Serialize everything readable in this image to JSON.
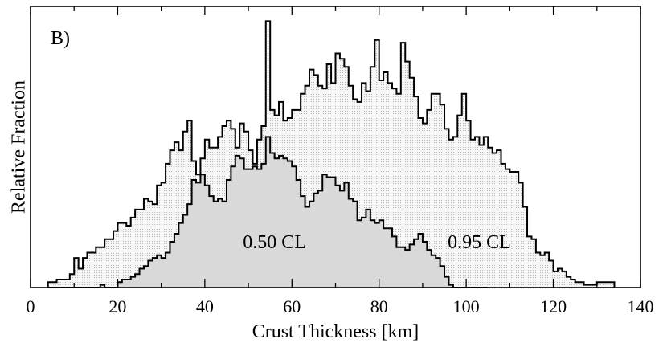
{
  "chart_data": {
    "type": "histogram",
    "panel_label": "B)",
    "xlabel": "Crust Thickness [km]",
    "ylabel": "Relative Fraction",
    "xlim": [
      0,
      140
    ],
    "ylim": [
      0,
      1
    ],
    "xticks": [
      0,
      20,
      40,
      60,
      80,
      100,
      120,
      140
    ],
    "bin_start": 4,
    "bin_width": 1,
    "series": [
      {
        "name": "0.95 CL",
        "label": "0.95 CL",
        "label_position": [
          103,
          0.17
        ],
        "values": [
          0.02,
          0.02,
          0.03,
          0.03,
          0.03,
          0.05,
          0.11,
          0.07,
          0.11,
          0.13,
          0.13,
          0.15,
          0.15,
          0.18,
          0.18,
          0.21,
          0.24,
          0.24,
          0.23,
          0.26,
          0.29,
          0.29,
          0.33,
          0.32,
          0.31,
          0.38,
          0.39,
          0.46,
          0.51,
          0.54,
          0.51,
          0.58,
          0.62,
          0.47,
          0.42,
          0.48,
          0.55,
          0.52,
          0.52,
          0.56,
          0.6,
          0.62,
          0.59,
          0.52,
          0.61,
          0.58,
          0.51,
          0.46,
          0.55,
          0.6,
          0.99,
          0.66,
          0.64,
          0.69,
          0.62,
          0.63,
          0.66,
          0.66,
          0.72,
          0.75,
          0.81,
          0.79,
          0.75,
          0.74,
          0.83,
          0.76,
          0.87,
          0.85,
          0.82,
          0.75,
          0.7,
          0.69,
          0.76,
          0.73,
          0.82,
          0.92,
          0.77,
          0.8,
          0.76,
          0.74,
          0.72,
          0.91,
          0.84,
          0.78,
          0.71,
          0.63,
          0.61,
          0.66,
          0.72,
          0.72,
          0.68,
          0.59,
          0.55,
          0.56,
          0.64,
          0.72,
          0.62,
          0.55,
          0.56,
          0.53,
          0.56,
          0.52,
          0.5,
          0.51,
          0.46,
          0.44,
          0.43,
          0.43,
          0.39,
          0.3,
          0.19,
          0.18,
          0.13,
          0.12,
          0.13,
          0.1,
          0.06,
          0.07,
          0.06,
          0.04,
          0.03,
          0.02,
          0.02,
          0.01,
          0.01,
          0.01,
          0.02,
          0.02,
          0.02,
          0.02
        ]
      },
      {
        "name": "0.50 CL",
        "label": "0.50 CL",
        "label_position": [
          56,
          0.17
        ],
        "values": [
          0,
          0,
          0,
          0,
          0,
          0,
          0,
          0,
          0,
          0,
          0,
          0,
          0.01,
          0,
          0,
          0,
          0.02,
          0.03,
          0.03,
          0.04,
          0.05,
          0.07,
          0.08,
          0.1,
          0.11,
          0.12,
          0.11,
          0.13,
          0.17,
          0.2,
          0.24,
          0.27,
          0.31,
          0.4,
          0.39,
          0.42,
          0.38,
          0.34,
          0.32,
          0.33,
          0.32,
          0.4,
          0.45,
          0.49,
          0.48,
          0.44,
          0.44,
          0.45,
          0.44,
          0.46,
          0.56,
          0.5,
          0.48,
          0.49,
          0.48,
          0.47,
          0.45,
          0.4,
          0.34,
          0.3,
          0.32,
          0.35,
          0.36,
          0.42,
          0.41,
          0.41,
          0.38,
          0.36,
          0.39,
          0.33,
          0.32,
          0.25,
          0.26,
          0.29,
          0.25,
          0.24,
          0.25,
          0.22,
          0.22,
          0.19,
          0.15,
          0.15,
          0.14,
          0.16,
          0.18,
          0.2,
          0.17,
          0.14,
          0.12,
          0.11,
          0.08,
          0.04,
          0.01,
          0,
          0,
          0,
          0,
          0,
          0,
          0,
          0
        ]
      }
    ]
  }
}
